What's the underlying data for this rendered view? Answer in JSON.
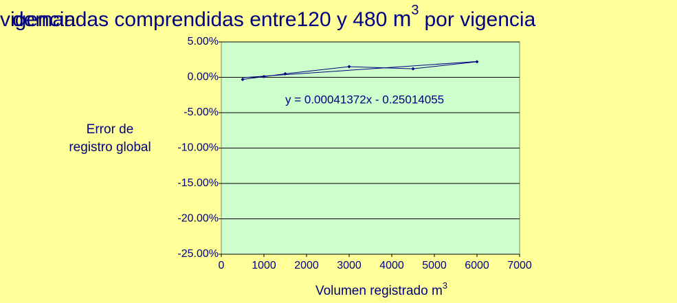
{
  "chart_data": {
    "type": "line",
    "title": {
      "overlap": "vigencia",
      "text": "demandas comprendidas entre120 y 480",
      "unit": "m",
      "unit_sup": "3",
      "suffix": "por vigencia"
    },
    "ylabel": [
      "Error de",
      "registro global"
    ],
    "xlabel": {
      "text": "Volumen registrado m",
      "sup": "3"
    },
    "x": [
      500,
      1000,
      1500,
      3000,
      4500,
      6000
    ],
    "series": [
      {
        "name": "Error de registro global",
        "color": "#000080",
        "values": [
          -0.3,
          0.1,
          0.5,
          1.5,
          1.2,
          2.2
        ]
      }
    ],
    "trendline": {
      "label": "y = 0.00041372x - 0.25014055",
      "slope": 0.00041372,
      "intercept": -0.25014055,
      "color": "#000080"
    },
    "xlim": [
      0,
      7000
    ],
    "xticks": [
      0,
      1000,
      2000,
      3000,
      4000,
      5000,
      6000,
      7000
    ],
    "ylim": [
      -25,
      5
    ],
    "yticks": [
      {
        "value": 5,
        "label": "5.00%"
      },
      {
        "value": 0,
        "label": "0.00%"
      },
      {
        "value": -5,
        "label": "-5.00%"
      },
      {
        "value": -10,
        "label": "-10.00%"
      },
      {
        "value": -15,
        "label": "-15.00%"
      },
      {
        "value": -20,
        "label": "-20.00%"
      },
      {
        "value": -25,
        "label": "-25.00%"
      }
    ],
    "plot_background": "#ccffcc",
    "grid": true
  }
}
